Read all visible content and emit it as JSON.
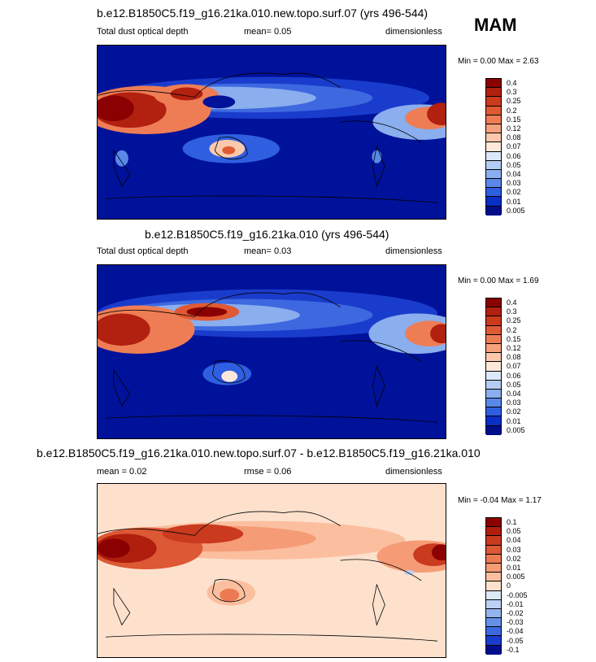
{
  "season": "MAM",
  "panels": [
    {
      "title": "b.e12.B1850C5.f19_g16.21ka.010.new.topo.surf.07 (yrs 496-544)",
      "left_label": "Total dust optical depth",
      "center_label": "mean=   0.05",
      "right_label": "dimensionless",
      "minmax": "Min =   0.00 Max =   2.63",
      "colorbar": {
        "labels": [
          "0.4",
          "0.3",
          "0.25",
          "0.2",
          "0.15",
          "0.12",
          "0.08",
          "0.07",
          "0.06",
          "0.05",
          "0.04",
          "0.03",
          "0.02",
          "0.01",
          "0.005"
        ],
        "colors": [
          "#8b0000",
          "#b22010",
          "#cc3a1e",
          "#df5a34",
          "#ee7d55",
          "#f6a07e",
          "#fbc8ad",
          "#fde8da",
          "#dde8f8",
          "#b4ccf4",
          "#8aaeee",
          "#5a88e8",
          "#2f5fe0",
          "#0a2fc6",
          "#000e8c"
        ]
      }
    },
    {
      "title": "b.e12.B1850C5.f19_g16.21ka.010 (yrs 496-544)",
      "left_label": "Total dust optical depth",
      "center_label": "mean=   0.03",
      "right_label": "dimensionless",
      "minmax": "Min =   0.00 Max =   1.69",
      "colorbar": {
        "labels": [
          "0.4",
          "0.3",
          "0.25",
          "0.2",
          "0.15",
          "0.12",
          "0.08",
          "0.07",
          "0.06",
          "0.05",
          "0.04",
          "0.03",
          "0.02",
          "0.01",
          "0.005"
        ],
        "colors": [
          "#8b0000",
          "#b22010",
          "#cc3a1e",
          "#df5a34",
          "#ee7d55",
          "#f6a07e",
          "#fbc8ad",
          "#fde8da",
          "#dde8f8",
          "#b4ccf4",
          "#8aaeee",
          "#5a88e8",
          "#2f5fe0",
          "#0a2fc6",
          "#000e8c"
        ]
      }
    },
    {
      "title": "b.e12.B1850C5.f19_g16.21ka.010.new.topo.surf.07 - b.e12.B1850C5.f19_g16.21ka.010",
      "left_label": "mean =   0.02",
      "center_label": "rmse =   0.06",
      "right_label": "dimensionless",
      "minmax": "Min =  -0.04 Max =   1.17",
      "colorbar": {
        "labels": [
          "0.1",
          "0.05",
          "0.04",
          "0.03",
          "0.02",
          "0.01",
          "0.005",
          "0",
          "-0.005",
          "-0.01",
          "-0.02",
          "-0.03",
          "-0.04",
          "-0.05",
          "-0.1"
        ],
        "colors": [
          "#8b0000",
          "#b01e0e",
          "#c93a1f",
          "#dd5834",
          "#ec7a52",
          "#f59c77",
          "#fbbf9f",
          "#fde1cd",
          "#dde8f8",
          "#bcd0f4",
          "#94b4ee",
          "#6690e8",
          "#3d68e0",
          "#1a3ccc",
          "#000e8c"
        ]
      }
    }
  ],
  "colors": {
    "ocean_blue": "#00129a",
    "diff_background": "#fde1cd"
  }
}
